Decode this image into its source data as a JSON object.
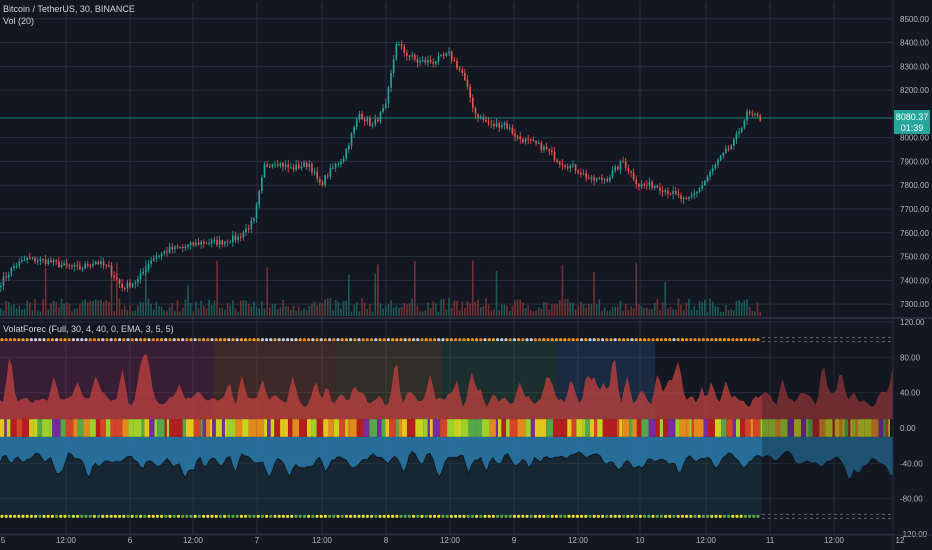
{
  "header": {
    "symbol_line": "Bitcoin / TetherUS, 30, BINANCE",
    "volume_label": "Vol (20)",
    "indicator_label": "VolatForec (Full, 30, 4, 40, 0, EMA, 3, 5, 5)"
  },
  "price_badge": {
    "value": "8080.37",
    "countdown": "01:39",
    "color": "#26a69a"
  },
  "colors": {
    "up": "#26a69a",
    "down": "#ef5350",
    "background": "#131722",
    "grid": "#2a2e39",
    "text": "#b2b5be",
    "area_top": "#c2423f",
    "area_bottom": "#2a7fb4"
  },
  "chart_data": [
    {
      "type": "candlestick",
      "title": "Bitcoin / TetherUS, 30, BINANCE",
      "y_ticks": [
        "8500.00",
        "8400.00",
        "8300.00",
        "8200.00",
        "8000.00",
        "7900.00",
        "7800.00",
        "7700.00",
        "7600.00",
        "7500.00",
        "7400.00",
        "7300.00"
      ],
      "ylim": [
        7250,
        8520
      ],
      "x_ticks": [
        "5",
        "12:00",
        "6",
        "12:00",
        "7",
        "12:00",
        "8",
        "12:00",
        "9",
        "12:00",
        "10",
        "12:00",
        "11",
        "12:00",
        "12"
      ],
      "close_anchors": [
        [
          0,
          7390
        ],
        [
          5,
          7460
        ],
        [
          10,
          7490
        ],
        [
          18,
          7480
        ],
        [
          24,
          7460
        ],
        [
          30,
          7450
        ],
        [
          36,
          7480
        ],
        [
          41,
          7450
        ],
        [
          46,
          7370
        ],
        [
          52,
          7400
        ],
        [
          57,
          7490
        ],
        [
          64,
          7530
        ],
        [
          70,
          7540
        ],
        [
          76,
          7560
        ],
        [
          83,
          7560
        ],
        [
          90,
          7580
        ],
        [
          96,
          7650
        ],
        [
          100,
          7880
        ],
        [
          104,
          7900
        ],
        [
          110,
          7870
        ],
        [
          117,
          7890
        ],
        [
          121,
          7800
        ],
        [
          125,
          7860
        ],
        [
          130,
          7920
        ],
        [
          136,
          8100
        ],
        [
          141,
          8050
        ],
        [
          146,
          8130
        ],
        [
          150,
          8400
        ],
        [
          153,
          8360
        ],
        [
          158,
          8320
        ],
        [
          164,
          8320
        ],
        [
          170,
          8350
        ],
        [
          175,
          8270
        ],
        [
          180,
          8100
        ],
        [
          186,
          8050
        ],
        [
          191,
          8060
        ],
        [
          196,
          8000
        ],
        [
          201,
          7980
        ],
        [
          207,
          7950
        ],
        [
          212,
          7900
        ],
        [
          218,
          7870
        ],
        [
          224,
          7820
        ],
        [
          230,
          7830
        ],
        [
          236,
          7900
        ],
        [
          242,
          7800
        ],
        [
          248,
          7800
        ],
        [
          254,
          7770
        ],
        [
          260,
          7730
        ],
        [
          266,
          7800
        ],
        [
          272,
          7900
        ],
        [
          278,
          7980
        ],
        [
          283,
          8100
        ],
        [
          288,
          8080
        ]
      ],
      "candle_count": 289,
      "volume_series_name": "Vol (20)"
    },
    {
      "type": "area",
      "title": "VolatForec (Full, 30, 4, 40, 0, EMA, 3, 5, 5)",
      "y_ticks": [
        "120.00",
        "80.00",
        "40.00",
        "0.00",
        "-40.00",
        "-80.00",
        "-120.00"
      ],
      "ylim": [
        -120,
        120
      ],
      "upper_level": 100,
      "lower_level": -100,
      "zones": [
        {
          "from": 0,
          "to": 0.28,
          "color": "#7a2a55"
        },
        {
          "from": 0.28,
          "to": 0.44,
          "color": "#8a4a30"
        },
        {
          "from": 0.44,
          "to": 0.58,
          "color": "#6a5a35"
        },
        {
          "from": 0.58,
          "to": 0.73,
          "color": "#2f5a45"
        },
        {
          "from": 0.73,
          "to": 0.86,
          "color": "#2c4a7a"
        }
      ]
    }
  ]
}
